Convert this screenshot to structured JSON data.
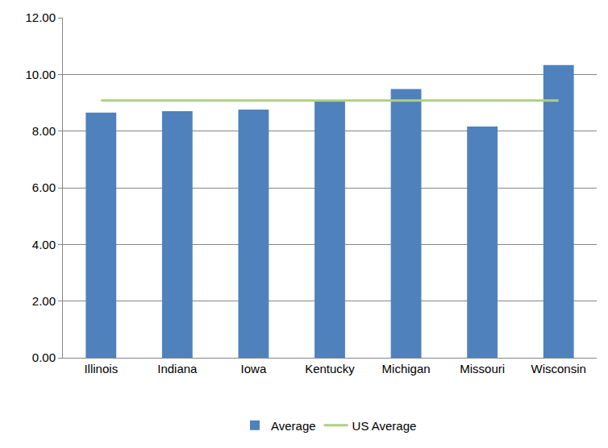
{
  "chart_data": {
    "type": "bar",
    "categories": [
      "Illinois",
      "Indiana",
      "Iowa",
      "Kentucky",
      "Michigan",
      "Missouri",
      "Wisconsin"
    ],
    "series": [
      {
        "name": "Average",
        "type": "bar",
        "color": "#4f81bd",
        "values": [
          8.65,
          8.7,
          8.76,
          9.04,
          9.48,
          8.16,
          10.33
        ]
      },
      {
        "name": "US Average",
        "type": "line",
        "color": "#aed084",
        "values": [
          9.08,
          9.08,
          9.08,
          9.08,
          9.08,
          9.08,
          9.08
        ]
      }
    ],
    "ylim": [
      0,
      12
    ],
    "yticks": [
      {
        "value": 0,
        "label": "0.00"
      },
      {
        "value": 2,
        "label": "2.00"
      },
      {
        "value": 4,
        "label": "4.00"
      },
      {
        "value": 6,
        "label": "6.00"
      },
      {
        "value": 8,
        "label": "8.00"
      },
      {
        "value": 10,
        "label": "10.00"
      },
      {
        "value": 12,
        "label": "12.00"
      }
    ],
    "grid": true,
    "legend": "bottom"
  }
}
